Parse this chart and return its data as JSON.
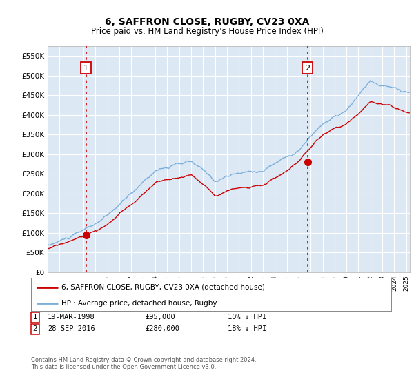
{
  "title": "6, SAFFRON CLOSE, RUGBY, CV23 0XA",
  "subtitle": "Price paid vs. HM Land Registry's House Price Index (HPI)",
  "ylim": [
    0,
    575000
  ],
  "yticks": [
    0,
    50000,
    100000,
    150000,
    200000,
    250000,
    300000,
    350000,
    400000,
    450000,
    500000,
    550000
  ],
  "ytick_labels": [
    "£0",
    "£50K",
    "£100K",
    "£150K",
    "£200K",
    "£250K",
    "£300K",
    "£350K",
    "£400K",
    "£450K",
    "£500K",
    "£550K"
  ],
  "plot_bg_color": "#dde8f5",
  "grid_color": "#ffffff",
  "transaction1": {
    "date": "19-MAR-1998",
    "price": 95000,
    "label": "10% ↓ HPI",
    "year": 1998.21
  },
  "transaction2": {
    "date": "28-SEP-2016",
    "price": 280000,
    "label": "18% ↓ HPI",
    "year": 2016.75
  },
  "legend_line1": "6, SAFFRON CLOSE, RUGBY, CV23 0XA (detached house)",
  "legend_line2": "HPI: Average price, detached house, Rugby",
  "footnote": "Contains HM Land Registry data © Crown copyright and database right 2024.\nThis data is licensed under the Open Government Licence v3.0.",
  "red_color": "#cc0000",
  "blue_color": "#7aafda",
  "marker_box_color": "#cc0000",
  "xlim_start": 1995.0,
  "xlim_end": 2025.3
}
